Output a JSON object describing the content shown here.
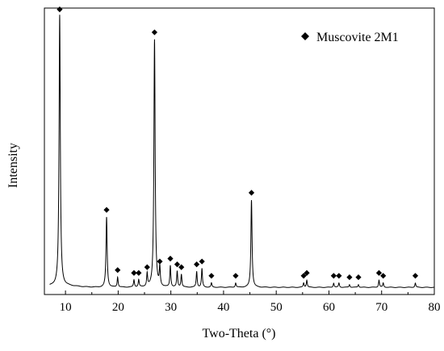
{
  "chart_data": {
    "type": "line",
    "title": "",
    "xlabel": "Two-Theta (°)",
    "ylabel": "Intensity",
    "xlim": [
      6,
      80
    ],
    "ylim": [
      0,
      100
    ],
    "x_ticks": [
      10,
      20,
      30,
      40,
      50,
      60,
      70,
      80
    ],
    "y_ticks_shown": false,
    "grid": false,
    "legend": {
      "position": "top-right",
      "entries": [
        {
          "marker": "diamond",
          "label": "Muscovite 2M1"
        }
      ]
    },
    "series": [
      {
        "name": "Muscovite 2M1",
        "line_color": "#000000",
        "baseline": 2.5,
        "peaks": [
          {
            "x": 8.9,
            "y": 97
          },
          {
            "x": 17.8,
            "y": 27
          },
          {
            "x": 19.9,
            "y": 6
          },
          {
            "x": 23.0,
            "y": 5
          },
          {
            "x": 23.9,
            "y": 5
          },
          {
            "x": 25.5,
            "y": 7
          },
          {
            "x": 26.9,
            "y": 89
          },
          {
            "x": 27.9,
            "y": 9
          },
          {
            "x": 29.9,
            "y": 10
          },
          {
            "x": 31.2,
            "y": 8
          },
          {
            "x": 32.0,
            "y": 7
          },
          {
            "x": 34.9,
            "y": 8
          },
          {
            "x": 35.9,
            "y": 9
          },
          {
            "x": 37.7,
            "y": 4
          },
          {
            "x": 42.3,
            "y": 4
          },
          {
            "x": 45.3,
            "y": 33
          },
          {
            "x": 55.2,
            "y": 4
          },
          {
            "x": 55.8,
            "y": 5
          },
          {
            "x": 60.9,
            "y": 4
          },
          {
            "x": 61.9,
            "y": 4
          },
          {
            "x": 63.9,
            "y": 3.5
          },
          {
            "x": 65.6,
            "y": 3.5
          },
          {
            "x": 69.5,
            "y": 5
          },
          {
            "x": 70.3,
            "y": 4
          },
          {
            "x": 76.4,
            "y": 4
          }
        ]
      }
    ]
  }
}
